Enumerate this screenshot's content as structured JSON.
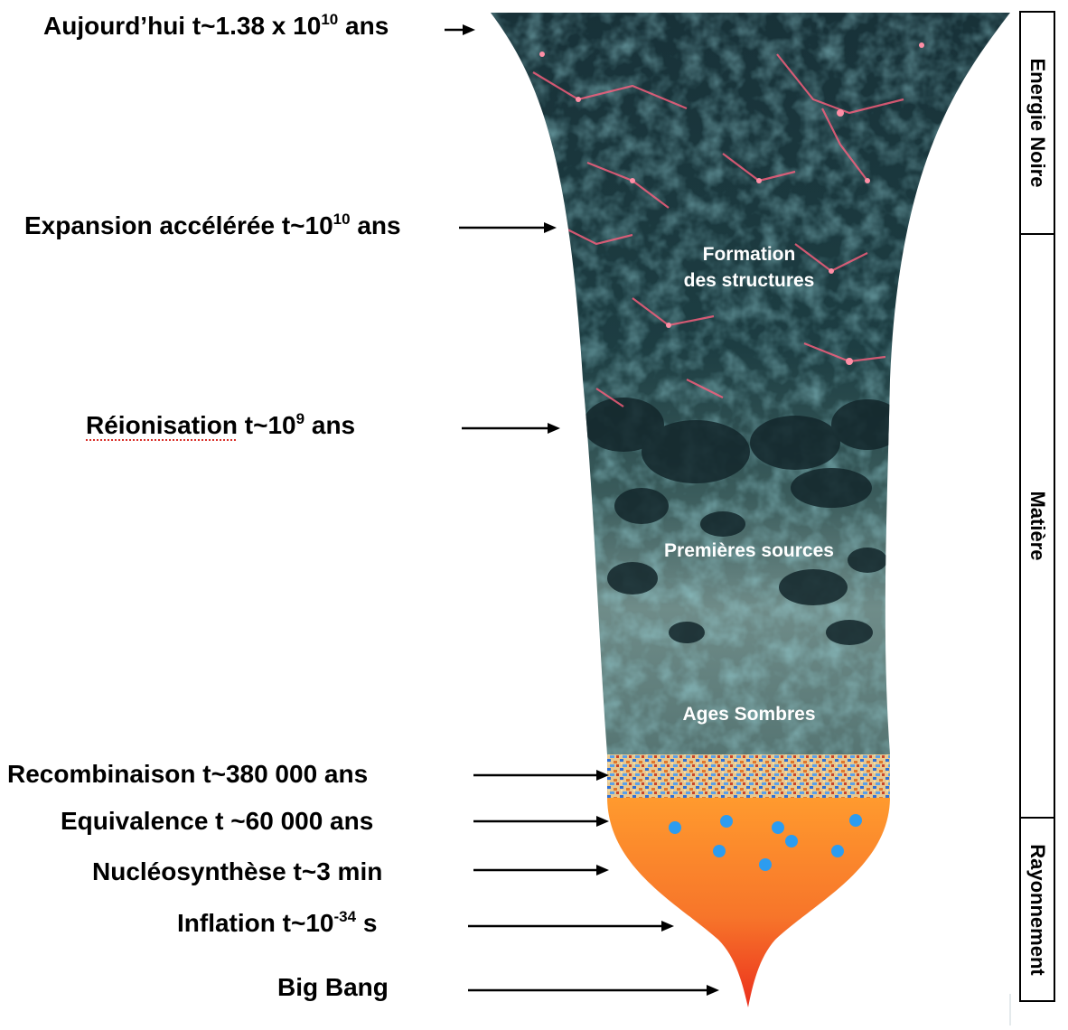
{
  "timeline": {
    "today": {
      "text": "Aujourd’hui t~1.38 x 10",
      "exp": "10",
      "tail": " ans"
    },
    "acceleration": {
      "text": "Expansion accélérée t~10",
      "exp": "10",
      "tail": " ans"
    },
    "reionisation": {
      "word": "Réionisation",
      "text": " t~10",
      "exp": "9",
      "tail": " ans"
    },
    "recombination": {
      "text": "Recombinaison t~380 000 ans"
    },
    "equivalence": {
      "text": "Equivalence t ~60 000 ans"
    },
    "nucleosynthesis": {
      "text": "Nucléosynthèse t~3 min"
    },
    "inflation": {
      "text": "Inflation t~10",
      "exp": "-34",
      "tail": " s"
    },
    "bigbang": {
      "text": "Big Bang"
    }
  },
  "inside": {
    "formation_line1": "Formation",
    "formation_line2": "des structures",
    "first_sources": "Premières sources",
    "dark_ages": "Ages Sombres"
  },
  "eras": {
    "dark_energy": "Energie Noire",
    "matter": "Matière",
    "radiation": "Rayonnement"
  },
  "colors": {
    "cosmic_web_bg": "#17343a",
    "filament": "#ff5f7e",
    "neutral_gas": "#6c8a88",
    "plasma_top": "#ff9a2e",
    "plasma_bottom": "#ee2a1e",
    "particles": "#2c9cf0"
  }
}
